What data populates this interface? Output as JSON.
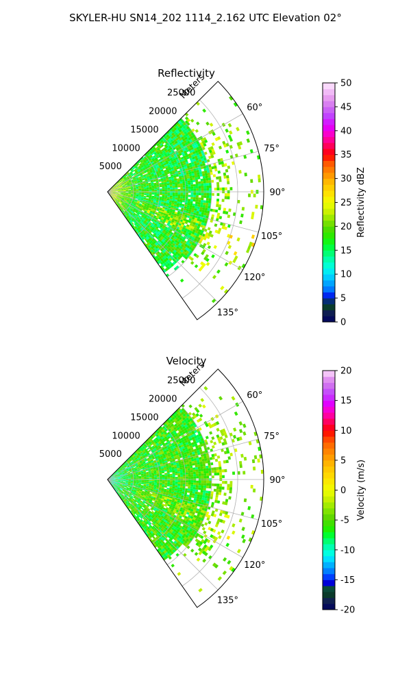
{
  "figure": {
    "suptitle": "SKYLER-HU  SN14_202  1114_2.162 UTC Elevation 02°"
  },
  "chart_data": [
    {
      "type": "heatmap",
      "projection": "polar-sector",
      "title": "Reflectivity",
      "range_axis_label": "Meters",
      "range_ticks": [
        "5000",
        "10000",
        "15000",
        "20000",
        "25000"
      ],
      "range_tick_values": [
        5000,
        10000,
        15000,
        20000,
        25000
      ],
      "range_limit": [
        0,
        30000
      ],
      "azimuth_limit": [
        45,
        145
      ],
      "azimuth_ticks": [
        "60°",
        "75°",
        "90°",
        "105°",
        "120°",
        "135°"
      ],
      "azimuth_tick_values": [
        60,
        75,
        90,
        105,
        120,
        135
      ],
      "grid": true,
      "colorbar": {
        "label": "Reflectivity dBZ",
        "min": 0,
        "max": 50,
        "ticks": [
          "0",
          "5",
          "10",
          "15",
          "20",
          "25",
          "30",
          "35",
          "40",
          "45",
          "50"
        ],
        "tick_values": [
          0,
          5,
          10,
          15,
          20,
          25,
          30,
          35,
          40,
          45,
          50
        ],
        "colors": [
          [
            0,
            "#000060"
          ],
          [
            2,
            "#102050"
          ],
          [
            3,
            "#0a3a2a"
          ],
          [
            4,
            "#0a4a3a"
          ],
          [
            5,
            "#0000d8"
          ],
          [
            6,
            "#0040ff"
          ],
          [
            7,
            "#0080ff"
          ],
          [
            8.5,
            "#00b0ff"
          ],
          [
            10,
            "#00e0ff"
          ],
          [
            11.5,
            "#00ffe0"
          ],
          [
            13,
            "#00ffb0"
          ],
          [
            14.5,
            "#00ff70"
          ],
          [
            16,
            "#00ff30"
          ],
          [
            17.5,
            "#20f000"
          ],
          [
            19,
            "#40e000"
          ],
          [
            20,
            "#60d800"
          ],
          [
            21.5,
            "#90e800"
          ],
          [
            23,
            "#c8f000"
          ],
          [
            25,
            "#f0ff00"
          ],
          [
            27,
            "#ffe000"
          ],
          [
            29,
            "#ffc000"
          ],
          [
            31,
            "#ff9000"
          ],
          [
            33,
            "#ff6000"
          ],
          [
            35,
            "#ff0000"
          ],
          [
            37,
            "#ff0060"
          ],
          [
            39,
            "#ff00c0"
          ],
          [
            41,
            "#e000ff"
          ],
          [
            43,
            "#c040ff"
          ],
          [
            45,
            "#d070f0"
          ],
          [
            47,
            "#e8a0f0"
          ],
          [
            50,
            "#ffe8ff"
          ]
        ]
      },
      "field": {
        "base": 17,
        "spread": 4,
        "near_bias": 7,
        "band_bias": 5
      }
    },
    {
      "type": "heatmap",
      "projection": "polar-sector",
      "title": "Velocity",
      "range_axis_label": "Meters",
      "range_ticks": [
        "5000",
        "10000",
        "15000",
        "20000",
        "25000"
      ],
      "range_tick_values": [
        5000,
        10000,
        15000,
        20000,
        25000
      ],
      "range_limit": [
        0,
        30000
      ],
      "azimuth_limit": [
        45,
        145
      ],
      "azimuth_ticks": [
        "60°",
        "75°",
        "90°",
        "105°",
        "120°",
        "135°"
      ],
      "azimuth_tick_values": [
        60,
        75,
        90,
        105,
        120,
        135
      ],
      "grid": true,
      "colorbar": {
        "label": "Velocity (m/s)",
        "min": -20,
        "max": 20,
        "ticks": [
          "-20",
          "-15",
          "-10",
          "-5",
          "0",
          "5",
          "10",
          "15",
          "20"
        ],
        "tick_values": [
          -20,
          -15,
          -10,
          -5,
          0,
          5,
          10,
          15,
          20
        ],
        "colors": [
          [
            -20,
            "#000060"
          ],
          [
            -18.5,
            "#102050"
          ],
          [
            -17.5,
            "#0a3a2a"
          ],
          [
            -16.5,
            "#0a4a3a"
          ],
          [
            -15.5,
            "#0000d8"
          ],
          [
            -14.5,
            "#0040ff"
          ],
          [
            -13.5,
            "#0080ff"
          ],
          [
            -12.5,
            "#00b0ff"
          ],
          [
            -11.5,
            "#00e0ff"
          ],
          [
            -10.5,
            "#00ffe0"
          ],
          [
            -9.5,
            "#00ffb0"
          ],
          [
            -8.5,
            "#00ff70"
          ],
          [
            -7.5,
            "#00ff30"
          ],
          [
            -6.5,
            "#20f000"
          ],
          [
            -5.5,
            "#40e000"
          ],
          [
            -4.5,
            "#60d800"
          ],
          [
            -3,
            "#90e800"
          ],
          [
            -1.5,
            "#c8f000"
          ],
          [
            0,
            "#f0ff00"
          ],
          [
            2,
            "#ffe000"
          ],
          [
            4,
            "#ffc000"
          ],
          [
            6,
            "#ff9000"
          ],
          [
            8,
            "#ff6000"
          ],
          [
            10,
            "#ff0000"
          ],
          [
            11.5,
            "#ff0060"
          ],
          [
            13,
            "#ff00c0"
          ],
          [
            14.5,
            "#e000ff"
          ],
          [
            16,
            "#c040ff"
          ],
          [
            17.5,
            "#d070f0"
          ],
          [
            19,
            "#e8a0f0"
          ],
          [
            20,
            "#ffe8ff"
          ]
        ]
      },
      "field": {
        "base": -6,
        "spread": 3,
        "near_bias": -3,
        "band_bias": 3
      }
    }
  ]
}
